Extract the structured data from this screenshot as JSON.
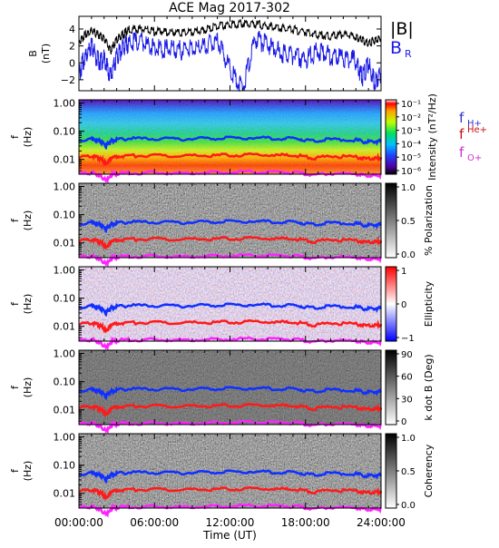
{
  "title": "ACE Mag 2017-302",
  "x_axis": {
    "label": "Time (UT)",
    "ticks": [
      "00:00:00",
      "06:00:00",
      "12:00:00",
      "18:00:00",
      "24:00:00"
    ],
    "tick_hours": [
      0,
      6,
      12,
      18,
      24
    ],
    "range_hours": [
      0,
      24
    ]
  },
  "colors": {
    "B_total": "#000000",
    "B_R": "#1a1ae6",
    "f_H": "#1030ff",
    "f_He": "#ff1a1a",
    "f_O": "#ff22ff",
    "legend_fH": "#3333cc",
    "legend_fHe": "#cc1111",
    "legend_fO": "#cc33cc"
  },
  "chart_data": [
    {
      "type": "line",
      "panel": "B",
      "ylabel": "B",
      "yunit": "(nT)",
      "ylim": [
        -3.3,
        5.5
      ],
      "yticks": [
        "4",
        "2",
        "0",
        "−2"
      ],
      "ytick_values": [
        4,
        2,
        0,
        -2
      ],
      "legend": [
        "|B|",
        "B"
      ],
      "legend_subscript": "R",
      "series": [
        {
          "name": "|B|",
          "x": [
            0,
            0.5,
            1,
            1.5,
            2,
            2.5,
            3,
            3.5,
            4,
            5,
            6,
            7,
            8,
            9,
            10,
            11,
            12,
            13,
            14,
            15,
            16,
            17,
            18,
            19,
            20,
            21,
            22,
            22.5,
            23,
            23.5,
            24
          ],
          "values": [
            2.7,
            3.6,
            4.0,
            3.6,
            3.2,
            1.6,
            3.0,
            3.6,
            4.2,
            4.3,
            4.0,
            3.9,
            3.8,
            3.9,
            4.1,
            4.6,
            4.8,
            4.9,
            4.8,
            4.6,
            4.4,
            4.2,
            3.9,
            3.6,
            3.4,
            3.7,
            3.3,
            2.9,
            2.5,
            3.0,
            3.2
          ]
        },
        {
          "name": "B_R",
          "x": [
            0,
            0.5,
            1,
            1.5,
            2,
            2.5,
            3,
            3.5,
            4,
            5,
            6,
            7,
            8,
            9,
            10,
            11,
            12,
            13,
            14,
            15,
            16,
            17,
            18,
            19,
            20,
            21,
            22,
            22.5,
            23,
            23.5,
            24
          ],
          "values": [
            -0.8,
            1.5,
            2.8,
            0.8,
            1.0,
            -1.0,
            1.3,
            2.5,
            3.0,
            3.1,
            2.3,
            2.2,
            2.1,
            2.3,
            2.6,
            3.2,
            0.0,
            -2.5,
            3.3,
            2.8,
            1.8,
            1.4,
            1.0,
            2.0,
            1.5,
            1.2,
            0.9,
            -1.2,
            0.5,
            -1.8,
            -0.5
          ]
        }
      ]
    },
    {
      "type": "heatmap",
      "panel": "intensity",
      "ylabel": "f",
      "yunit": "(Hz)",
      "colorbar_label": "Intensity (nT²/Hz)",
      "colorbar_ticks": [
        "10⁻¹",
        "10⁻²",
        "10⁻³",
        "10⁻⁴",
        "10⁻⁵",
        "10⁻⁶"
      ],
      "legend": [
        "f",
        "f",
        "f"
      ],
      "legend_superscript": [
        "H+",
        "He+",
        "O+"
      ]
    },
    {
      "type": "heatmap",
      "panel": "polarization",
      "ylabel": "f",
      "yunit": "(Hz)",
      "colorbar_label": "% Polarization",
      "colorbar_ticks": [
        "1.0",
        "0.5",
        "0.0"
      ]
    },
    {
      "type": "heatmap",
      "panel": "ellipticity",
      "ylabel": "f",
      "yunit": "(Hz)",
      "colorbar_label": "Ellipticity",
      "colorbar_ticks": [
        "1",
        "0",
        "−1"
      ]
    },
    {
      "type": "heatmap",
      "panel": "kdotb",
      "ylabel": "f",
      "yunit": "(Hz)",
      "colorbar_label": "k dot B (Deg)",
      "colorbar_ticks": [
        "90",
        "60",
        "30",
        "0"
      ]
    },
    {
      "type": "heatmap",
      "panel": "coherency",
      "ylabel": "f",
      "yunit": "(Hz)",
      "colorbar_label": "Coherency",
      "colorbar_ticks": [
        "1.0",
        "0.5",
        "0.0"
      ]
    }
  ],
  "freq_axis": {
    "yticks": [
      "1.00",
      "0.10",
      "0.01"
    ],
    "ytick_values": [
      1.0,
      0.1,
      0.01
    ],
    "ylim_hz": [
      0.003,
      1.3
    ],
    "log": true
  },
  "gyro_lines": {
    "x": [
      0,
      1,
      1.5,
      1.8,
      2.1,
      2.3,
      2.6,
      3,
      4,
      6,
      8,
      10,
      12,
      14,
      16,
      17.5,
      18.5,
      20,
      22,
      22.8,
      23.5,
      24
    ],
    "f_H": [
      0.052,
      0.057,
      0.05,
      0.043,
      0.035,
      0.039,
      0.05,
      0.055,
      0.058,
      0.058,
      0.056,
      0.058,
      0.061,
      0.062,
      0.06,
      0.058,
      0.048,
      0.055,
      0.052,
      0.044,
      0.046,
      0.048
    ],
    "f_He": [
      0.013,
      0.0145,
      0.0125,
      0.0105,
      0.0078,
      0.0085,
      0.0125,
      0.0138,
      0.0145,
      0.0145,
      0.014,
      0.0145,
      0.0152,
      0.0155,
      0.015,
      0.0145,
      0.0118,
      0.0138,
      0.013,
      0.011,
      0.0115,
      0.012
    ],
    "f_O": [
      0.0033,
      0.0036,
      0.0031,
      0.0026,
      0.002,
      0.0021,
      0.0031,
      0.0034,
      0.0036,
      0.0036,
      0.0035,
      0.0036,
      0.0038,
      0.0039,
      0.0037,
      0.0036,
      0.003,
      0.0034,
      0.0033,
      0.0028,
      0.0029,
      0.003
    ]
  }
}
